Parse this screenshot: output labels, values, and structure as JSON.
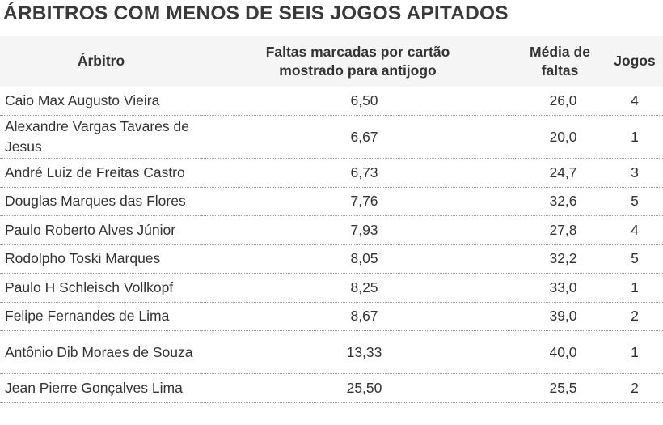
{
  "title": "ÁRBITROS COM MENOS DE SEIS JOGOS APITADOS",
  "columns": {
    "referee": "Árbitro",
    "fouls_per_card_line1": "Faltas marcadas por cartão",
    "fouls_per_card_line2": "mostrado para antijogo",
    "avg_fouls_line1": "Média de",
    "avg_fouls_line2": "faltas",
    "games": "Jogos"
  },
  "rows": [
    {
      "name": "Caio Max Augusto Vieira",
      "fouls_per_card": "6,50",
      "avg_fouls": "26,0",
      "games": "4"
    },
    {
      "name": "Alexandre Vargas Tavares de Jesus",
      "fouls_per_card": "6,67",
      "avg_fouls": "20,0",
      "games": "1"
    },
    {
      "name": "André Luiz de Freitas Castro",
      "fouls_per_card": "6,73",
      "avg_fouls": "24,7",
      "games": "3"
    },
    {
      "name": "Douglas Marques das Flores",
      "fouls_per_card": "7,76",
      "avg_fouls": "32,6",
      "games": "5"
    },
    {
      "name": "Paulo Roberto Alves Júnior",
      "fouls_per_card": "7,93",
      "avg_fouls": "27,8",
      "games": "4"
    },
    {
      "name": "Rodolpho Toski Marques",
      "fouls_per_card": "8,05",
      "avg_fouls": "32,2",
      "games": "5"
    },
    {
      "name": "Paulo H Schleisch Vollkopf",
      "fouls_per_card": "8,25",
      "avg_fouls": "33,0",
      "games": "1"
    },
    {
      "name": "Felipe Fernandes de Lima",
      "fouls_per_card": "8,67",
      "avg_fouls": "39,0",
      "games": "2"
    },
    {
      "name": "Antônio Dib Moraes de Souza",
      "fouls_per_card": "13,33",
      "avg_fouls": "40,0",
      "games": "1"
    },
    {
      "name": "Jean Pierre Gonçalves Lima",
      "fouls_per_card": "25,50",
      "avg_fouls": "25,5",
      "games": "2"
    }
  ]
}
